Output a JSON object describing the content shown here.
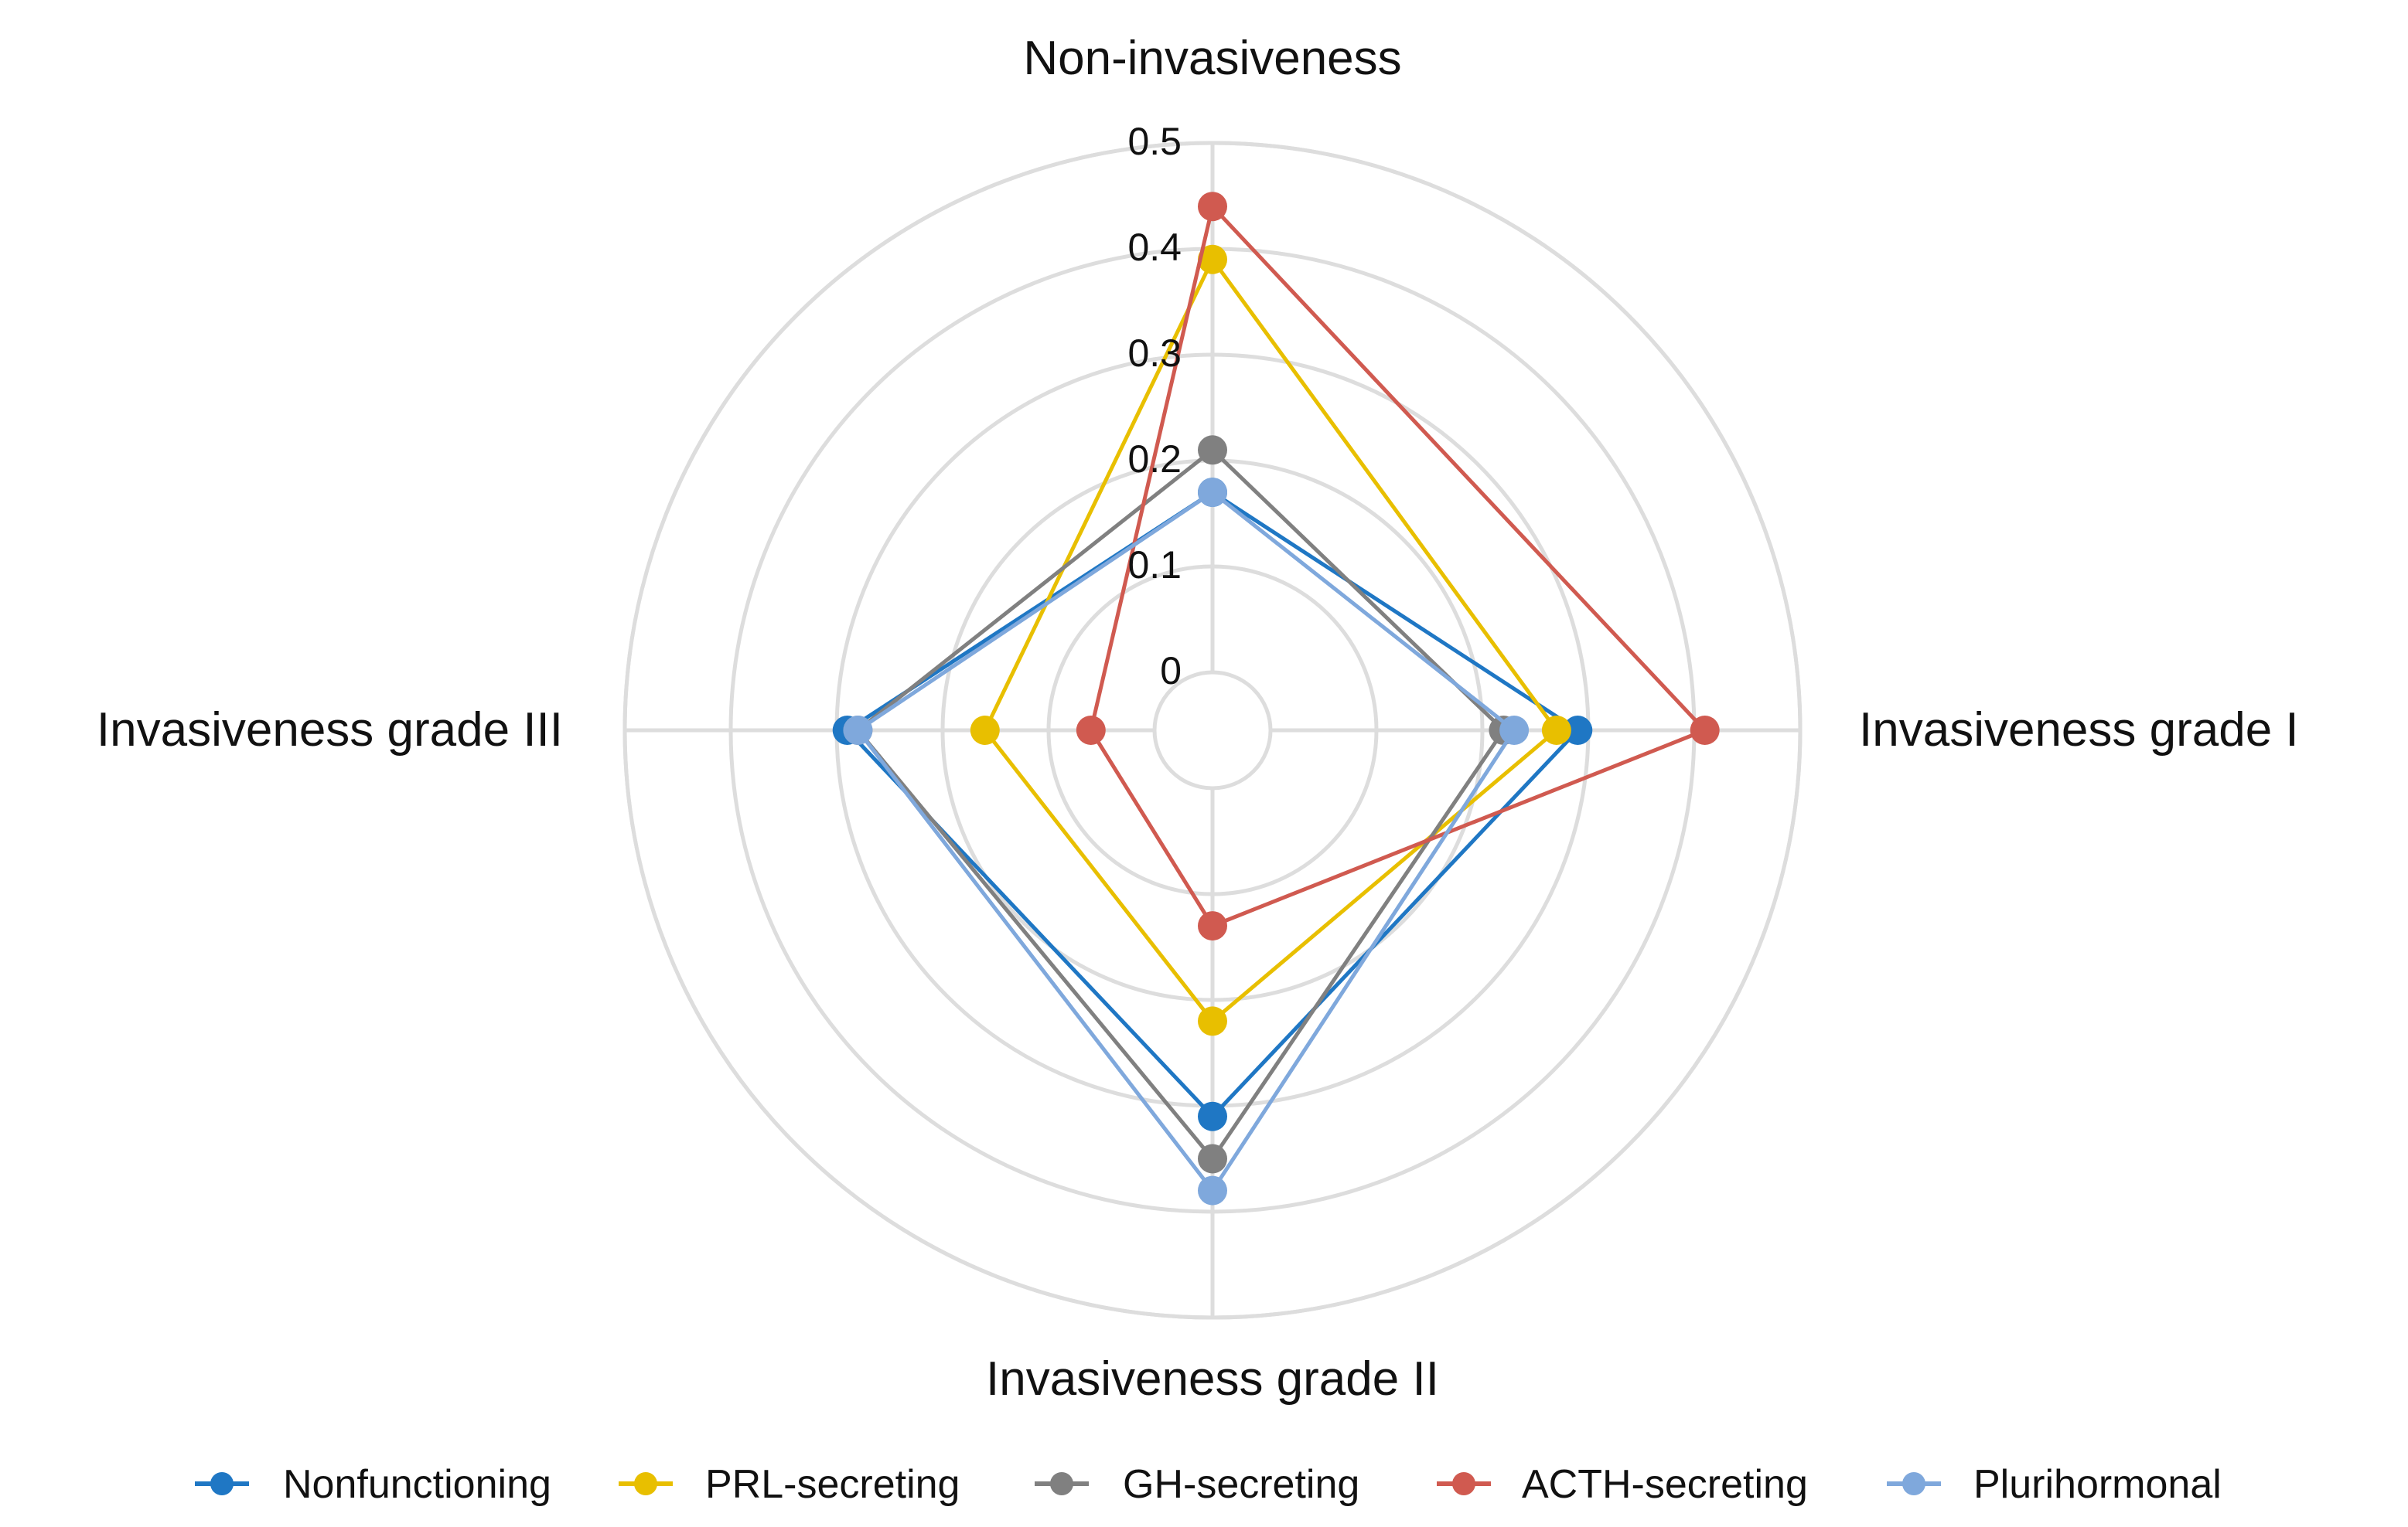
{
  "chart_data": {
    "type": "radar",
    "axes": [
      "Non-invasiveness",
      "Invasiveness grade I",
      "Invasiveness grade II",
      "Invasiveness grade III"
    ],
    "rlim": [
      0,
      0.5
    ],
    "r_ticks": [
      "0",
      "0.1",
      "0.2",
      "0.3",
      "0.4",
      "0.5"
    ],
    "r_tick_values": [
      0,
      0.1,
      0.2,
      0.3,
      0.4,
      0.5
    ],
    "grid": true,
    "legend_position": "bottom",
    "series": [
      {
        "name": "Nonfunctioning",
        "color": "#1f77c4",
        "values": [
          0.17,
          0.29,
          0.31,
          0.29
        ]
      },
      {
        "name": "PRL-secreting",
        "color": "#e8bf00",
        "values": [
          0.39,
          0.27,
          0.22,
          0.16
        ]
      },
      {
        "name": "GH-secreting",
        "color": "#808080",
        "values": [
          0.21,
          0.22,
          0.35,
          0.28
        ]
      },
      {
        "name": "ACTH-secreting",
        "color": "#d05a50",
        "values": [
          0.44,
          0.41,
          0.13,
          0.06
        ]
      },
      {
        "name": "Plurihormonal",
        "color": "#7fa8dc",
        "values": [
          0.17,
          0.23,
          0.38,
          0.28
        ]
      }
    ]
  }
}
